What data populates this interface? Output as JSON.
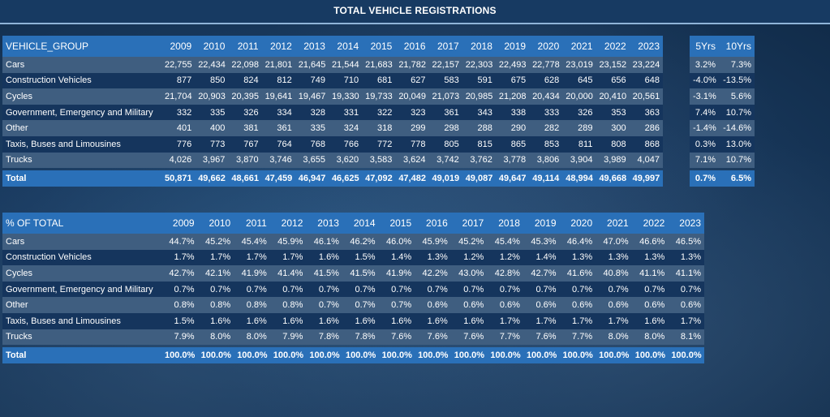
{
  "title": "TOTAL VEHICLE REGISTRATIONS",
  "registrations": {
    "header_label": "VEHICLE_GROUP",
    "years": [
      "2009",
      "2010",
      "2011",
      "2012",
      "2013",
      "2014",
      "2015",
      "2016",
      "2017",
      "2018",
      "2019",
      "2020",
      "2021",
      "2022",
      "2023"
    ],
    "rows": [
      {
        "name": "Cars",
        "values": [
          "22,755",
          "22,434",
          "22,098",
          "21,801",
          "21,645",
          "21,544",
          "21,683",
          "21,782",
          "22,157",
          "22,303",
          "22,493",
          "22,778",
          "23,019",
          "23,152",
          "23,224"
        ]
      },
      {
        "name": "Construction Vehicles",
        "values": [
          "877",
          "850",
          "824",
          "812",
          "749",
          "710",
          "681",
          "627",
          "583",
          "591",
          "675",
          "628",
          "645",
          "656",
          "648"
        ]
      },
      {
        "name": "Cycles",
        "values": [
          "21,704",
          "20,903",
          "20,395",
          "19,641",
          "19,467",
          "19,330",
          "19,733",
          "20,049",
          "21,073",
          "20,985",
          "21,208",
          "20,434",
          "20,000",
          "20,410",
          "20,561"
        ]
      },
      {
        "name": "Government, Emergency and Military",
        "values": [
          "332",
          "335",
          "326",
          "334",
          "328",
          "331",
          "322",
          "323",
          "361",
          "343",
          "338",
          "333",
          "326",
          "353",
          "363"
        ]
      },
      {
        "name": "Other",
        "values": [
          "401",
          "400",
          "381",
          "361",
          "335",
          "324",
          "318",
          "299",
          "298",
          "288",
          "290",
          "282",
          "289",
          "300",
          "286"
        ]
      },
      {
        "name": "Taxis, Buses and Limousines",
        "values": [
          "776",
          "773",
          "767",
          "764",
          "768",
          "766",
          "772",
          "778",
          "805",
          "815",
          "865",
          "853",
          "811",
          "808",
          "868"
        ]
      },
      {
        "name": "Trucks",
        "values": [
          "4,026",
          "3,967",
          "3,870",
          "3,746",
          "3,655",
          "3,620",
          "3,583",
          "3,624",
          "3,742",
          "3,762",
          "3,778",
          "3,806",
          "3,904",
          "3,989",
          "4,047"
        ]
      }
    ],
    "total": {
      "name": "Total",
      "values": [
        "50,871",
        "49,662",
        "48,661",
        "47,459",
        "46,947",
        "46,625",
        "47,092",
        "47,482",
        "49,019",
        "49,087",
        "49,647",
        "49,114",
        "48,994",
        "49,668",
        "49,997"
      ]
    }
  },
  "growth": {
    "headers": [
      "5Yrs",
      "10Yrs"
    ],
    "rows": [
      [
        "3.2%",
        "7.3%"
      ],
      [
        "-4.0%",
        "-13.5%"
      ],
      [
        "-3.1%",
        "5.6%"
      ],
      [
        "7.4%",
        "10.7%"
      ],
      [
        "-1.4%",
        "-14.6%"
      ],
      [
        "0.3%",
        "13.0%"
      ],
      [
        "7.1%",
        "10.7%"
      ]
    ],
    "total": [
      "0.7%",
      "6.5%"
    ]
  },
  "percent": {
    "header_label": "% OF TOTAL",
    "years": [
      "2009",
      "2010",
      "2011",
      "2012",
      "2013",
      "2014",
      "2015",
      "2016",
      "2017",
      "2018",
      "2019",
      "2020",
      "2021",
      "2022",
      "2023"
    ],
    "rows": [
      {
        "name": "Cars",
        "values": [
          "44.7%",
          "45.2%",
          "45.4%",
          "45.9%",
          "46.1%",
          "46.2%",
          "46.0%",
          "45.9%",
          "45.2%",
          "45.4%",
          "45.3%",
          "46.4%",
          "47.0%",
          "46.6%",
          "46.5%"
        ]
      },
      {
        "name": "Construction Vehicles",
        "values": [
          "1.7%",
          "1.7%",
          "1.7%",
          "1.7%",
          "1.6%",
          "1.5%",
          "1.4%",
          "1.3%",
          "1.2%",
          "1.2%",
          "1.4%",
          "1.3%",
          "1.3%",
          "1.3%",
          "1.3%"
        ]
      },
      {
        "name": "Cycles",
        "values": [
          "42.7%",
          "42.1%",
          "41.9%",
          "41.4%",
          "41.5%",
          "41.5%",
          "41.9%",
          "42.2%",
          "43.0%",
          "42.8%",
          "42.7%",
          "41.6%",
          "40.8%",
          "41.1%",
          "41.1%"
        ]
      },
      {
        "name": "Government, Emergency and Military",
        "values": [
          "0.7%",
          "0.7%",
          "0.7%",
          "0.7%",
          "0.7%",
          "0.7%",
          "0.7%",
          "0.7%",
          "0.7%",
          "0.7%",
          "0.7%",
          "0.7%",
          "0.7%",
          "0.7%",
          "0.7%"
        ]
      },
      {
        "name": "Other",
        "values": [
          "0.8%",
          "0.8%",
          "0.8%",
          "0.8%",
          "0.7%",
          "0.7%",
          "0.7%",
          "0.6%",
          "0.6%",
          "0.6%",
          "0.6%",
          "0.6%",
          "0.6%",
          "0.6%",
          "0.6%"
        ]
      },
      {
        "name": "Taxis, Buses and Limousines",
        "values": [
          "1.5%",
          "1.6%",
          "1.6%",
          "1.6%",
          "1.6%",
          "1.6%",
          "1.6%",
          "1.6%",
          "1.6%",
          "1.7%",
          "1.7%",
          "1.7%",
          "1.7%",
          "1.6%",
          "1.7%"
        ]
      },
      {
        "name": "Trucks",
        "values": [
          "7.9%",
          "8.0%",
          "8.0%",
          "7.9%",
          "7.8%",
          "7.8%",
          "7.6%",
          "7.6%",
          "7.6%",
          "7.7%",
          "7.6%",
          "7.7%",
          "8.0%",
          "8.0%",
          "8.1%"
        ]
      }
    ],
    "total": {
      "name": "Total",
      "values": [
        "100.0%",
        "100.0%",
        "100.0%",
        "100.0%",
        "100.0%",
        "100.0%",
        "100.0%",
        "100.0%",
        "100.0%",
        "100.0%",
        "100.0%",
        "100.0%",
        "100.0%",
        "100.0%",
        "100.0%"
      ]
    }
  }
}
